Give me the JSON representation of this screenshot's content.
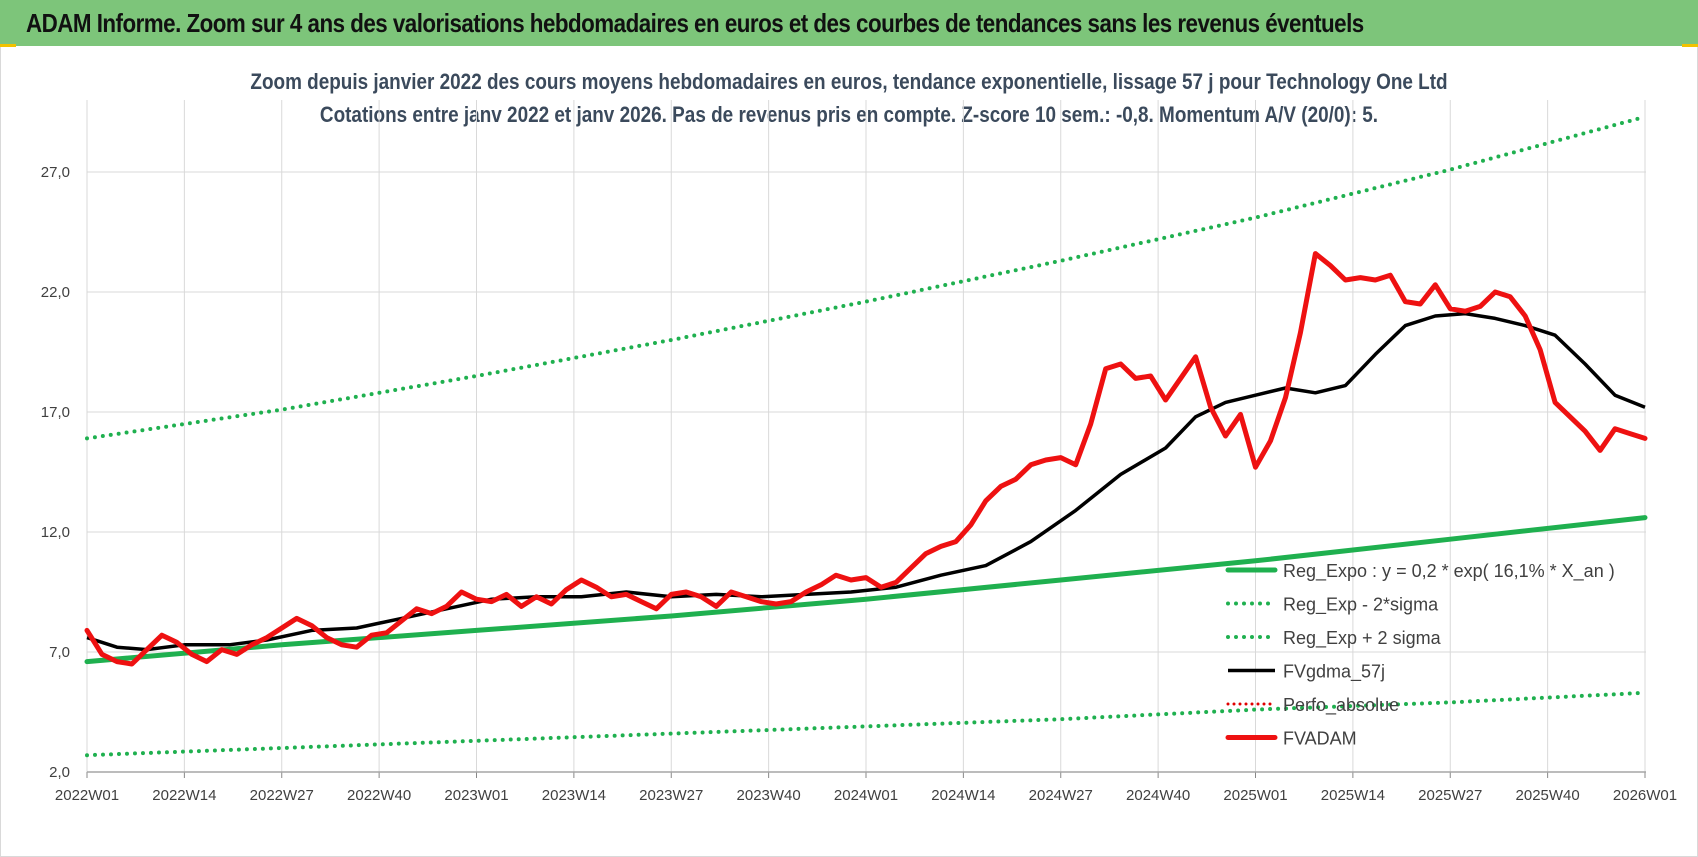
{
  "header": {
    "title": "ADAM Informe. Zoom sur 4 ans des valorisations hebdomadaires en euros et des courbes de tendances sans les revenus éventuels"
  },
  "colors": {
    "banner": "#7dc57a",
    "regression": "#1fb04f",
    "sigma": "#1fb04f",
    "smoothed": "#000000",
    "perf": "#e00000",
    "fvadam": "#ee1111"
  },
  "chart_data": {
    "type": "line",
    "title": "Zoom depuis janvier 2022 des cours moyens hebdomadaires en euros, tendance exponentielle, lissage 57 j pour Technology One Ltd",
    "subtitle": "Cotations entre janv 2022 et janv 2026. Pas de revenus pris en compte. Z-score 10 sem.: -0,8. Momentum A/V (20/0): 5.",
    "xlabel": "",
    "ylabel": "",
    "ylim": [
      2.0,
      30.0
    ],
    "ytick_values": [
      2.0,
      7.0,
      12.0,
      17.0,
      22.0,
      27.0
    ],
    "ytick_labels": [
      "2,0",
      "7,0",
      "12,0",
      "17,0",
      "22,0",
      "27,0"
    ],
    "xlim": [
      0,
      209
    ],
    "xtick_positions": [
      0,
      13,
      26,
      39,
      52,
      65,
      78,
      91,
      104,
      117,
      130,
      143,
      156,
      169,
      182,
      195,
      208
    ],
    "xtick_labels": [
      "2022W01",
      "2022W14",
      "2022W27",
      "2022W40",
      "2023W01",
      "2023W14",
      "2023W27",
      "2023W40",
      "2024W01",
      "2024W14",
      "2024W27",
      "2024W40",
      "2025W01",
      "2025W14",
      "2025W27",
      "2025W40",
      "2026W01"
    ],
    "series": [
      {
        "name": "Reg_Expo : y = 0,2 * exp( 16,1% * X_an )",
        "style": "solid-thick",
        "x": [
          0,
          26,
          52,
          78,
          104,
          130,
          156,
          182,
          208
        ],
        "values": [
          6.6,
          7.3,
          7.9,
          8.5,
          9.2,
          10.0,
          10.8,
          11.7,
          12.6
        ]
      },
      {
        "name": "Reg_Exp - 2*sigma",
        "style": "dotted",
        "x": [
          0,
          26,
          52,
          78,
          104,
          130,
          156,
          182,
          208
        ],
        "values": [
          2.7,
          3.0,
          3.3,
          3.6,
          3.9,
          4.2,
          4.6,
          4.9,
          5.3
        ]
      },
      {
        "name": "Reg_Exp + 2 sigma",
        "style": "dotted",
        "x": [
          0,
          26,
          52,
          78,
          104,
          130,
          156,
          182,
          208
        ],
        "values": [
          15.9,
          17.1,
          18.5,
          20.0,
          21.6,
          23.3,
          25.1,
          27.1,
          29.3
        ]
      },
      {
        "name": "FVgdma_57j",
        "style": "solid",
        "x": [
          0,
          4,
          8,
          13,
          19,
          24,
          30,
          36,
          42,
          48,
          54,
          60,
          66,
          72,
          78,
          84,
          90,
          96,
          102,
          108,
          114,
          120,
          126,
          132,
          138,
          144,
          148,
          152,
          156,
          160,
          164,
          168,
          172,
          176,
          180,
          184,
          188,
          192,
          196,
          200,
          204,
          208
        ],
        "values": [
          7.6,
          7.2,
          7.1,
          7.3,
          7.3,
          7.5,
          7.9,
          8.0,
          8.4,
          8.8,
          9.2,
          9.3,
          9.3,
          9.5,
          9.3,
          9.4,
          9.3,
          9.4,
          9.5,
          9.7,
          10.2,
          10.6,
          11.6,
          12.9,
          14.4,
          15.5,
          16.8,
          17.4,
          17.7,
          18.0,
          17.8,
          18.1,
          19.4,
          20.6,
          21.0,
          21.1,
          20.9,
          20.6,
          20.2,
          19.0,
          17.7,
          17.2
        ]
      },
      {
        "name": "Perfo_absolue",
        "style": "dotted-red",
        "x": [],
        "values": []
      },
      {
        "name": "FVADAM",
        "style": "solid-thick-red",
        "x": [
          0,
          2,
          4,
          6,
          8,
          10,
          12,
          14,
          16,
          18,
          20,
          22,
          24,
          26,
          28,
          30,
          32,
          34,
          36,
          38,
          40,
          42,
          44,
          46,
          48,
          50,
          52,
          54,
          56,
          58,
          60,
          62,
          64,
          66,
          68,
          70,
          72,
          74,
          76,
          78,
          80,
          82,
          84,
          86,
          88,
          90,
          92,
          94,
          96,
          98,
          100,
          102,
          104,
          106,
          108,
          110,
          112,
          114,
          116,
          118,
          120,
          122,
          124,
          126,
          128,
          130,
          132,
          134,
          136,
          138,
          140,
          142,
          144,
          146,
          148,
          150,
          152,
          154,
          156,
          158,
          160,
          162,
          164,
          166,
          168,
          170,
          172,
          174,
          176,
          178,
          180,
          182,
          184,
          186,
          188,
          190,
          192,
          194,
          196,
          198,
          200,
          202,
          204,
          206,
          208
        ],
        "values": [
          7.9,
          6.9,
          6.6,
          6.5,
          7.1,
          7.7,
          7.4,
          6.9,
          6.6,
          7.1,
          6.9,
          7.3,
          7.6,
          8.0,
          8.4,
          8.1,
          7.6,
          7.3,
          7.2,
          7.7,
          7.8,
          8.3,
          8.8,
          8.6,
          8.9,
          9.5,
          9.2,
          9.1,
          9.4,
          8.9,
          9.3,
          9.0,
          9.6,
          10.0,
          9.7,
          9.3,
          9.4,
          9.1,
          8.8,
          9.4,
          9.5,
          9.3,
          8.9,
          9.5,
          9.3,
          9.1,
          9.0,
          9.1,
          9.5,
          9.8,
          10.2,
          10.0,
          10.1,
          9.7,
          9.9,
          10.5,
          11.1,
          11.4,
          11.6,
          12.3,
          13.3,
          13.9,
          14.2,
          14.8,
          15.0,
          15.1,
          14.8,
          16.5,
          18.8,
          19.0,
          18.4,
          18.5,
          17.5,
          18.4,
          19.3,
          17.2,
          16.0,
          16.9,
          14.7,
          15.8,
          17.6,
          20.3,
          23.6,
          23.1,
          22.5,
          22.6,
          22.5,
          22.7,
          21.6,
          21.5,
          22.3,
          21.3,
          21.2,
          21.4,
          22.0,
          21.8,
          21.0,
          19.6,
          17.4,
          16.8,
          16.2,
          15.4,
          16.3,
          16.1,
          15.9
        ]
      }
    ],
    "legend": {
      "placement": "right-lower",
      "entries": [
        "Reg_Expo : y = 0,2 * exp( 16,1% * X_an )",
        "Reg_Exp - 2*sigma",
        "Reg_Exp + 2 sigma",
        "FVgdma_57j",
        "Perfo_absolue",
        "FVADAM"
      ]
    },
    "grid": true
  }
}
